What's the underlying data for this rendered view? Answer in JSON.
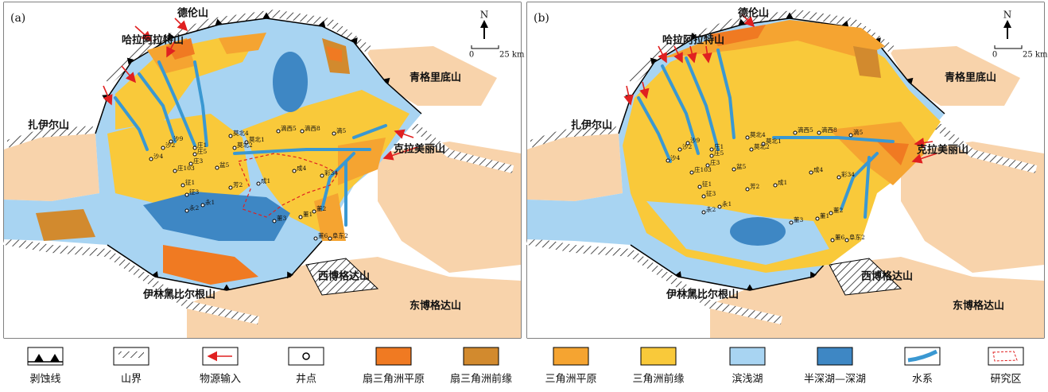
{
  "panels": [
    {
      "label": "(a)",
      "north": "N",
      "scale": [
        "0",
        "25 km"
      ],
      "mountains": [
        "德伦山",
        "哈拉阿拉特山",
        "青格里底山",
        "扎伊尔山",
        "克拉美丽山",
        "伊林黑比尔根山",
        "西博格达山",
        "东博格达山"
      ],
      "wells": [
        "沙9",
        "沙2",
        "沙4",
        "庄1",
        "庄5",
        "庄3",
        "庄103",
        "征1",
        "征3",
        "永2",
        "永1",
        "莫北4",
        "莫北1",
        "莫北2",
        "滴西5",
        "滴西8",
        "滴5",
        "盆5",
        "芳2",
        "成1",
        "成4",
        "彩34",
        "董1",
        "董2",
        "董6",
        "阜东2",
        "董3"
      ]
    },
    {
      "label": "(b)",
      "north": "N",
      "scale": [
        "0",
        "25 km"
      ],
      "mountains": [
        "德伦山",
        "哈拉阿拉特山",
        "青格里底山",
        "扎伊尔山",
        "克拉美丽山",
        "伊林黑比尔根山",
        "西博格达山",
        "东博格达山"
      ],
      "wells": [
        "沙9",
        "沙2",
        "沙4",
        "庄1",
        "庄5",
        "庄3",
        "庄103",
        "征1",
        "征3",
        "永2",
        "永1",
        "莫北4",
        "莫北1",
        "莫北2",
        "滴西5",
        "滴西8",
        "滴5",
        "盆5",
        "芳2",
        "成1",
        "成4",
        "彩34",
        "董1",
        "董2",
        "董6",
        "阜东2",
        "董3"
      ]
    }
  ],
  "legend": [
    {
      "label": "剥蚀线"
    },
    {
      "label": "山界"
    },
    {
      "label": "物源输入"
    },
    {
      "label": "井点"
    },
    {
      "label": "扇三角洲平原"
    },
    {
      "label": "扇三角洲前缘"
    },
    {
      "label": "三角洲平原"
    },
    {
      "label": "三角洲前缘"
    },
    {
      "label": "滨浅湖"
    },
    {
      "label": "半深湖—深湖"
    },
    {
      "label": "水系"
    },
    {
      "label": "研究区"
    }
  ]
}
